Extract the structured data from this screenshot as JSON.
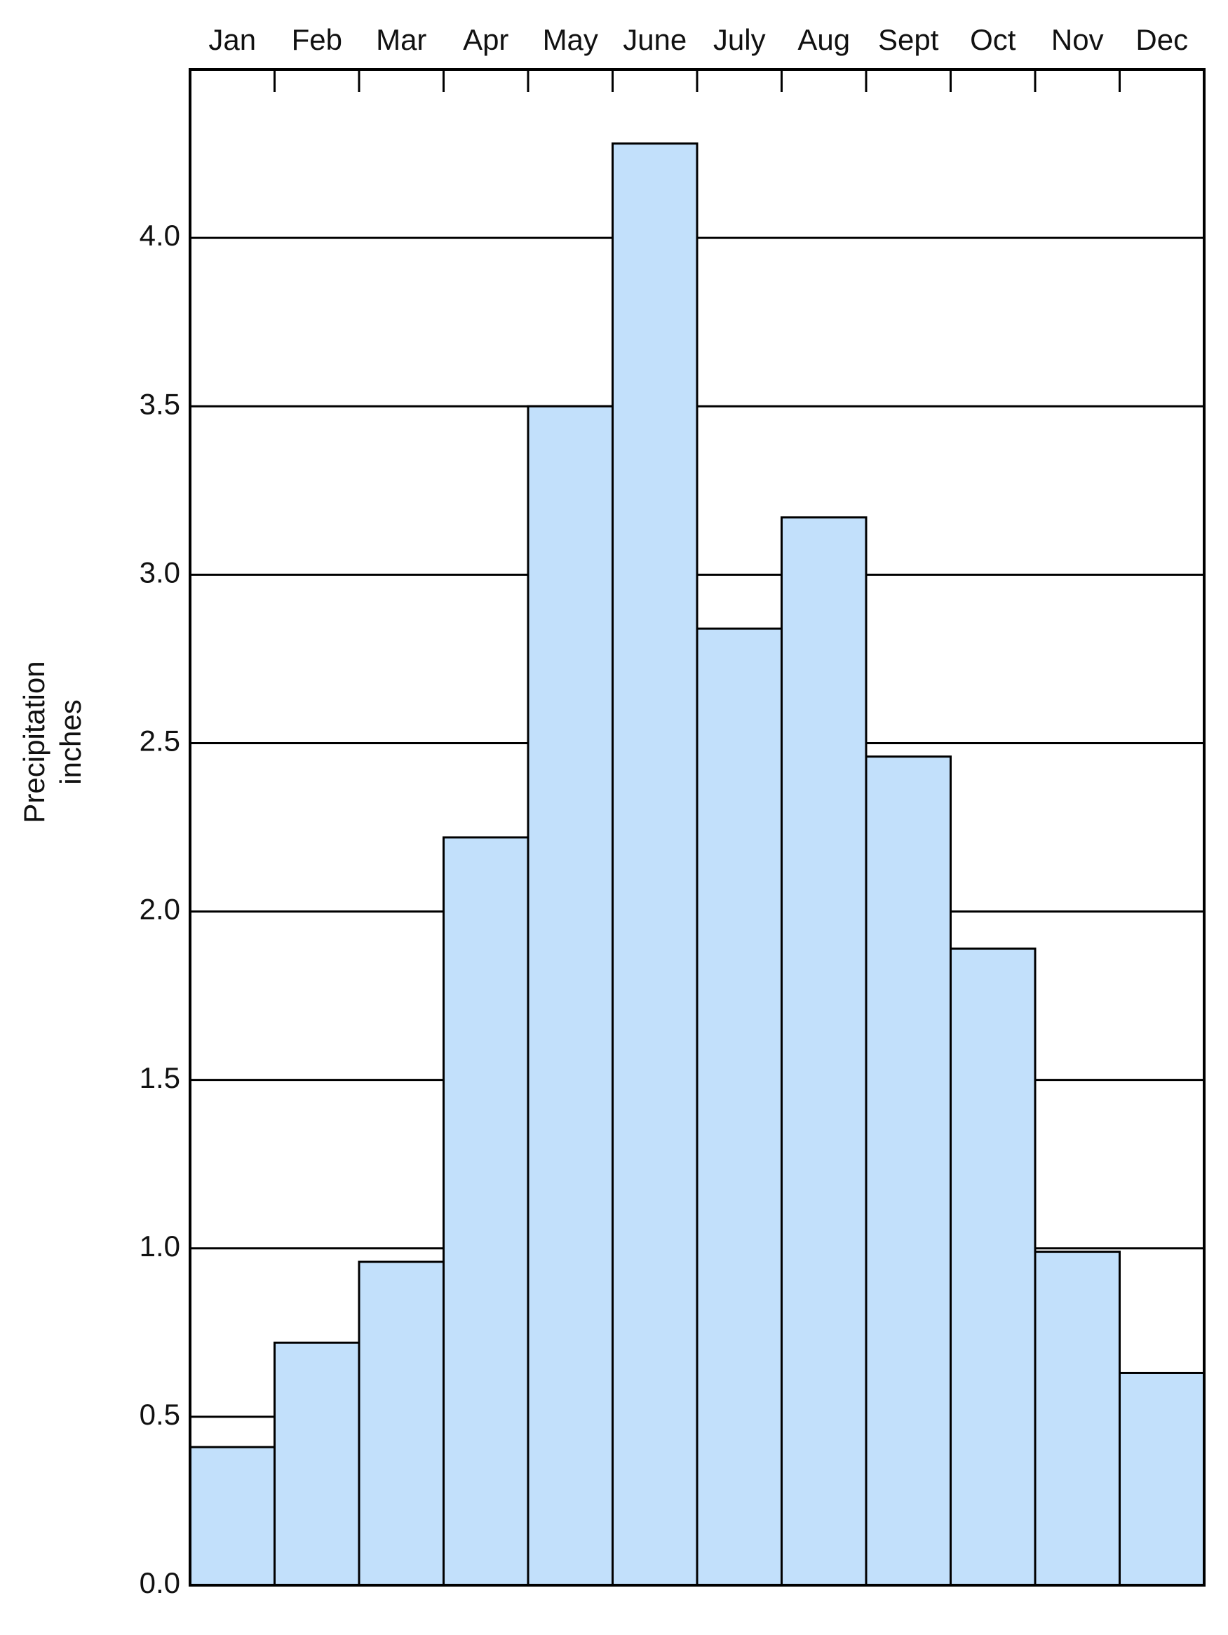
{
  "chart_data": {
    "type": "bar",
    "ylabel": [
      "Precipitation",
      "inches"
    ],
    "categories": [
      "Jan",
      "Feb",
      "Mar",
      "Apr",
      "May",
      "June",
      "July",
      "Aug",
      "Sept",
      "Oct",
      "Nov",
      "Dec"
    ],
    "values": [
      0.41,
      0.72,
      0.96,
      2.22,
      3.5,
      4.28,
      2.84,
      3.17,
      2.46,
      1.89,
      0.99,
      0.63
    ],
    "color": "#c2e0fb",
    "ylim": [
      0,
      4.5
    ],
    "yticks": [
      {
        "value": 0,
        "label": "0.0"
      },
      0.5,
      {
        "value": 1,
        "label": "1.0"
      },
      1.5,
      {
        "value": 2,
        "label": "2.0"
      },
      2.5,
      {
        "value": 3,
        "label": "3.0"
      },
      3.5,
      {
        "value": 4,
        "label": "4.0"
      }
    ],
    "grid": true
  }
}
